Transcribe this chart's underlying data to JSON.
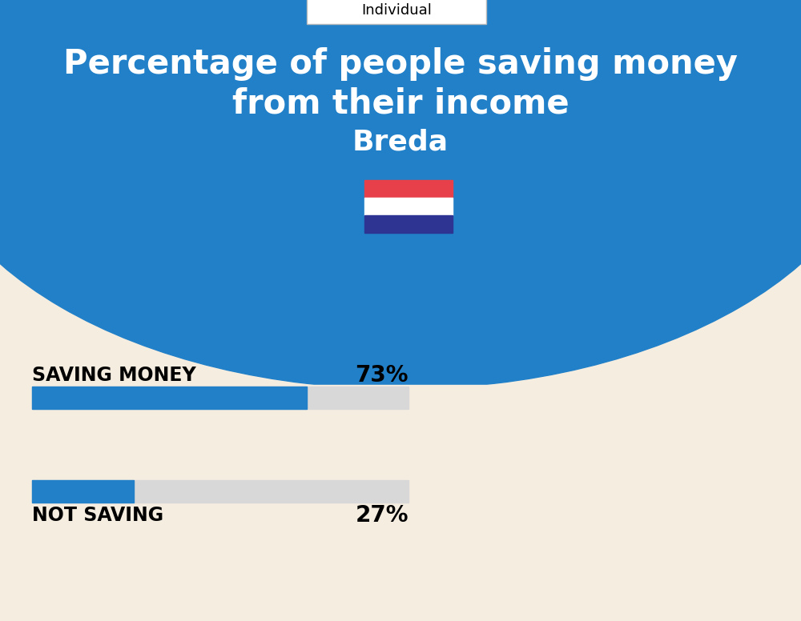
{
  "title_line1": "Percentage of people saving money",
  "title_line2": "from their income",
  "city": "Breda",
  "tab_label": "Individual",
  "background_color": "#F5EDE0",
  "header_color": "#2180C8",
  "bar_blue": "#2180C8",
  "bar_gray": "#D8D8D8",
  "saving_value": 73,
  "not_saving_value": 27,
  "saving_label": "SAVING MONEY",
  "not_saving_label": "NOT SAVING",
  "title_fontsize": 30,
  "city_fontsize": 26,
  "label_fontsize": 17,
  "pct_fontsize": 20,
  "tab_fontsize": 13,
  "flag_colors": [
    "#E8404A",
    "#FFFFFF",
    "#2E3491"
  ],
  "text_color": "#000000",
  "white": "#FFFFFF"
}
